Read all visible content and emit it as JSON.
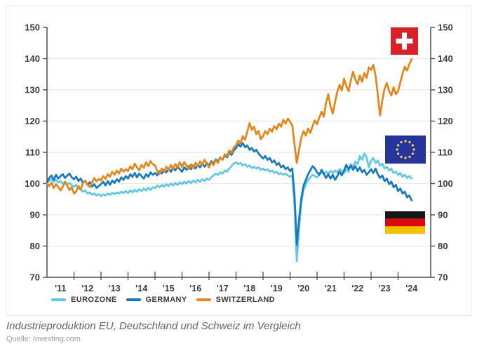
{
  "page": {
    "caption": "Industrieproduktion EU, Deutschland und Schweiz im Vergleich",
    "source": "Quelle: Investing.com"
  },
  "legend": [
    {
      "label": "EUROZONE",
      "color": "#5ec8e5"
    },
    {
      "label": "GERMANY",
      "color": "#1779bd"
    },
    {
      "label": "SWITZERLAND",
      "color": "#e5851a"
    }
  ],
  "flags": [
    {
      "name": "switzerland-flag",
      "colors": {
        "field": "#d8222b",
        "cross": "#ffffff"
      }
    },
    {
      "name": "eu-flag",
      "colors": {
        "field": "#26359b",
        "stars": "#ffd84d"
      }
    },
    {
      "name": "germany-flag",
      "colors": {
        "top": "#161616",
        "middle": "#dd0a0a",
        "bottom": "#f2c400"
      }
    }
  ],
  "chart_data": {
    "type": "line",
    "x_range": {
      "start": "2011-01",
      "end": "2024-07",
      "interval": "monthly"
    },
    "x_tick_labels": [
      "'11",
      "'12",
      "'13",
      "'14",
      "'15",
      "'16",
      "'17",
      "'18",
      "'19",
      "'20",
      "'21",
      "'22",
      "'23",
      "'24"
    ],
    "y_ticks": [
      70,
      80,
      90,
      100,
      110,
      120,
      130,
      140,
      150
    ],
    "ylim": [
      70,
      150
    ],
    "grid": "horizontal",
    "legend_position": "bottom-left",
    "axis_color": "#4d4d4d",
    "grid_color": "#e8e8e8",
    "series": [
      {
        "name": "EUROZONE",
        "color": "#5ec8e5",
        "values": [
          100.2,
          100.8,
          101.4,
          100.6,
          101.2,
          100.4,
          100.8,
          100.0,
          100.6,
          99.8,
          100.2,
          99.4,
          99.0,
          99.6,
          98.6,
          98.0,
          97.4,
          97.8,
          96.8,
          97.2,
          96.4,
          96.8,
          96.2,
          96.6,
          96.0,
          96.6,
          96.2,
          96.8,
          96.4,
          97.0,
          96.6,
          97.2,
          96.8,
          97.4,
          97.0,
          97.6,
          97.0,
          97.8,
          97.2,
          98.0,
          97.4,
          98.2,
          97.6,
          98.4,
          97.8,
          98.6,
          98.0,
          98.8,
          98.6,
          99.4,
          98.8,
          99.6,
          99.0,
          99.8,
          99.2,
          100.0,
          99.4,
          100.2,
          99.6,
          100.4,
          99.8,
          100.6,
          100.0,
          100.8,
          100.2,
          101.0,
          100.4,
          101.2,
          100.6,
          101.4,
          100.8,
          101.6,
          101.2,
          102.0,
          102.6,
          103.2,
          102.8,
          103.6,
          103.2,
          104.2,
          103.8,
          104.8,
          105.6,
          106.4,
          106.8,
          106.2,
          106.6,
          105.8,
          106.2,
          105.4,
          105.8,
          105.0,
          105.4,
          104.8,
          105.2,
          104.4,
          104.8,
          104.2,
          104.6,
          103.8,
          104.2,
          103.4,
          103.8,
          103.0,
          103.4,
          102.8,
          103.2,
          102.6,
          102.2,
          102.6,
          93.0,
          75.2,
          85.4,
          93.6,
          98.0,
          99.8,
          101.2,
          102.0,
          102.8,
          102.4,
          102.0,
          102.8,
          103.6,
          103.0,
          103.8,
          103.2,
          104.0,
          103.4,
          104.2,
          103.6,
          104.6,
          104.0,
          103.4,
          104.4,
          103.8,
          106.2,
          105.4,
          107.0,
          106.2,
          108.8,
          107.6,
          109.6,
          108.4,
          105.2,
          107.4,
          108.2,
          106.6,
          107.4,
          105.8,
          106.4,
          104.8,
          105.4,
          104.2,
          104.8,
          103.4,
          103.8,
          102.8,
          103.4,
          102.2,
          102.8,
          101.8,
          102.4,
          101.6
        ]
      },
      {
        "name": "GERMANY",
        "color": "#1779bd",
        "values": [
          100.5,
          101.8,
          102.6,
          101.2,
          102.8,
          101.6,
          102.4,
          103.0,
          101.8,
          102.6,
          103.2,
          102.0,
          101.4,
          102.2,
          100.8,
          101.6,
          100.2,
          100.8,
          99.6,
          100.4,
          99.0,
          99.8,
          98.6,
          99.2,
          99.8,
          100.6,
          99.4,
          100.8,
          99.6,
          101.0,
          100.2,
          101.4,
          100.6,
          102.0,
          101.2,
          102.4,
          101.6,
          103.0,
          102.2,
          103.4,
          102.0,
          103.2,
          102.4,
          101.6,
          103.0,
          102.2,
          103.6,
          102.8,
          103.4,
          102.6,
          104.0,
          103.2,
          104.4,
          103.6,
          104.8,
          103.8,
          105.0,
          104.2,
          105.4,
          104.6,
          103.8,
          105.2,
          104.4,
          105.6,
          104.6,
          105.8,
          104.8,
          106.0,
          105.2,
          106.4,
          105.4,
          106.6,
          105.8,
          107.2,
          106.4,
          107.8,
          107.0,
          108.4,
          107.6,
          109.0,
          108.4,
          110.0,
          109.2,
          110.6,
          111.4,
          112.6,
          111.8,
          113.0,
          111.6,
          112.2,
          110.8,
          111.4,
          110.2,
          110.8,
          109.6,
          108.8,
          108.0,
          108.8,
          107.6,
          108.2,
          106.8,
          107.4,
          106.0,
          106.6,
          105.2,
          105.8,
          104.6,
          105.2,
          104.0,
          104.8,
          96.0,
          80.4,
          88.6,
          95.2,
          99.4,
          101.2,
          103.0,
          104.2,
          105.6,
          104.8,
          103.6,
          102.8,
          104.4,
          103.2,
          101.8,
          103.0,
          101.6,
          102.8,
          101.2,
          102.4,
          103.8,
          102.6,
          104.2,
          106.0,
          104.6,
          105.8,
          104.4,
          105.6,
          104.0,
          105.2,
          103.6,
          104.4,
          102.8,
          103.6,
          104.6,
          103.4,
          104.8,
          103.0,
          101.8,
          102.6,
          100.8,
          101.6,
          99.8,
          100.6,
          98.8,
          99.6,
          97.6,
          98.4,
          96.8,
          97.4,
          95.6,
          96.2,
          94.6
        ]
      },
      {
        "name": "SWITZERLAND",
        "color": "#e5851a",
        "values": [
          100.0,
          99.2,
          100.3,
          98.6,
          99.8,
          98.9,
          97.8,
          99.0,
          100.6,
          99.3,
          97.9,
          98.8,
          96.8,
          97.5,
          99.2,
          98.1,
          100.2,
          101.0,
          99.6,
          98.9,
          100.4,
          101.8,
          100.7,
          101.5,
          101.0,
          102.4,
          101.5,
          103.0,
          102.2,
          103.8,
          102.8,
          104.2,
          103.2,
          104.8,
          103.8,
          104.6,
          104.0,
          105.5,
          104.6,
          106.4,
          105.2,
          104.3,
          106.0,
          105.1,
          106.8,
          105.6,
          107.2,
          106.2,
          105.8,
          103.9,
          103.2,
          104.8,
          103.8,
          105.4,
          104.4,
          105.9,
          104.7,
          106.3,
          105.2,
          106.8,
          105.3,
          106.9,
          105.7,
          104.6,
          106.2,
          105.0,
          106.7,
          105.6,
          107.1,
          106.1,
          107.6,
          106.4,
          105.2,
          106.8,
          105.9,
          107.5,
          106.6,
          108.4,
          107.6,
          109.4,
          108.8,
          110.6,
          109.8,
          111.6,
          112.2,
          113.8,
          112.8,
          115.2,
          114.0,
          116.6,
          119.4,
          117.2,
          118.2,
          115.8,
          116.8,
          114.2,
          115.2,
          116.8,
          115.8,
          117.6,
          116.6,
          118.4,
          117.4,
          119.2,
          118.2,
          120.4,
          119.2,
          120.8,
          119.8,
          118.6,
          112.4,
          106.6,
          110.8,
          114.6,
          116.8,
          115.4,
          117.6,
          116.2,
          118.4,
          120.2,
          119.0,
          121.2,
          123.0,
          121.4,
          125.8,
          128.6,
          124.6,
          122.4,
          126.2,
          129.4,
          131.6,
          129.8,
          133.6,
          131.2,
          129.6,
          133.0,
          135.8,
          133.4,
          131.8,
          134.6,
          132.6,
          135.4,
          133.8,
          137.2,
          136.4,
          138.0,
          134.6,
          128.4,
          121.8,
          126.6,
          130.4,
          132.2,
          129.6,
          128.2,
          130.8,
          128.6,
          129.6,
          132.4,
          135.2,
          137.4,
          136.2,
          138.2,
          139.8
        ]
      }
    ]
  }
}
